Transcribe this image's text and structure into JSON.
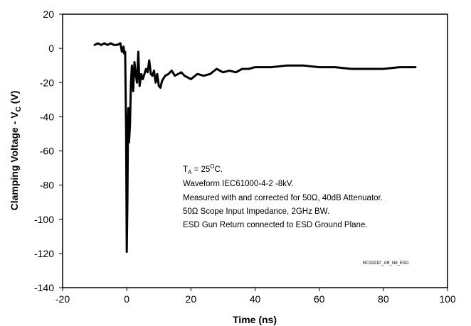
{
  "chart_data": {
    "type": "line",
    "title": "",
    "xlabel": "Time (ns)",
    "ylabel": "Clamping Voltage - V",
    "ylabel_subscript": "C",
    "ylabel_suffix": " (V)",
    "xlim": [
      -20,
      100
    ],
    "ylim": [
      -140,
      20
    ],
    "xticks": [
      "-20",
      "0",
      "20",
      "40",
      "60",
      "80",
      "100"
    ],
    "yticks": [
      "20",
      "0",
      "-20",
      "-40",
      "-60",
      "-80",
      "-100",
      "-120",
      "-140"
    ],
    "grid": false,
    "line_color": "#000000",
    "series": [
      {
        "x": [
          -10,
          -9,
          -8,
          -7,
          -6,
          -5,
          -4,
          -3,
          -2,
          -1.5,
          -1,
          -0.8,
          -0.5,
          -0.2,
          0,
          0.2,
          0.4,
          0.5,
          0.7,
          1.0,
          1.3,
          1.6,
          2.0,
          2.4,
          2.8,
          3.2,
          3.6,
          4.0,
          4.5,
          5.0,
          6.0,
          6.5,
          7.0,
          7.5,
          8.0,
          8.5,
          9.0,
          9.5,
          10.0,
          10.5,
          11.0,
          12.0,
          13.0,
          14.0,
          15.0,
          16.0,
          17.0,
          18.0,
          19.0,
          20.0,
          22.0,
          24.0,
          26.0,
          28.0,
          30.0,
          32.0,
          34.0,
          36.0,
          38.0,
          40.0,
          45.0,
          50.0,
          55.0,
          60.0,
          65.0,
          70.0,
          75.0,
          80.0,
          85.0,
          88.0,
          90.0
        ],
        "y": [
          2,
          3,
          2,
          3,
          2,
          3,
          2,
          2,
          3,
          -2,
          1,
          -3,
          -2,
          -50,
          -119,
          -90,
          -40,
          -35,
          -55,
          -45,
          -20,
          -10,
          -25,
          -8,
          -15,
          -20,
          -2,
          -22,
          -15,
          -18,
          -12,
          -14,
          -7,
          -15,
          -16,
          -13,
          -20,
          -15,
          -22,
          -23,
          -19,
          -16,
          -15,
          -13,
          -16,
          -15,
          -14,
          -16,
          -17,
          -18,
          -15,
          -16,
          -15,
          -12,
          -14,
          -13,
          -14,
          -12,
          -12,
          -11,
          -11,
          -10,
          -10,
          -11,
          -11,
          -12,
          -12,
          -12,
          -11,
          -11,
          -11
        ]
      }
    ]
  },
  "annotations": {
    "temp_prefix": "T",
    "temp_sub": "A",
    "temp_value": " = 25",
    "temp_deg": "O",
    "temp_unit": "C.",
    "line2": "Waveform IEC61000-4-2 -8kV.",
    "line3": "Measured with and corrected for 50Ω, 40dB Attenuator.",
    "line4": "50Ω Scope Input Impedance, 2GHz BW.",
    "line5": "ESD Gun Return connected to ESD Ground Plane.",
    "code": "RC3321P_AR_N8_ESD"
  }
}
